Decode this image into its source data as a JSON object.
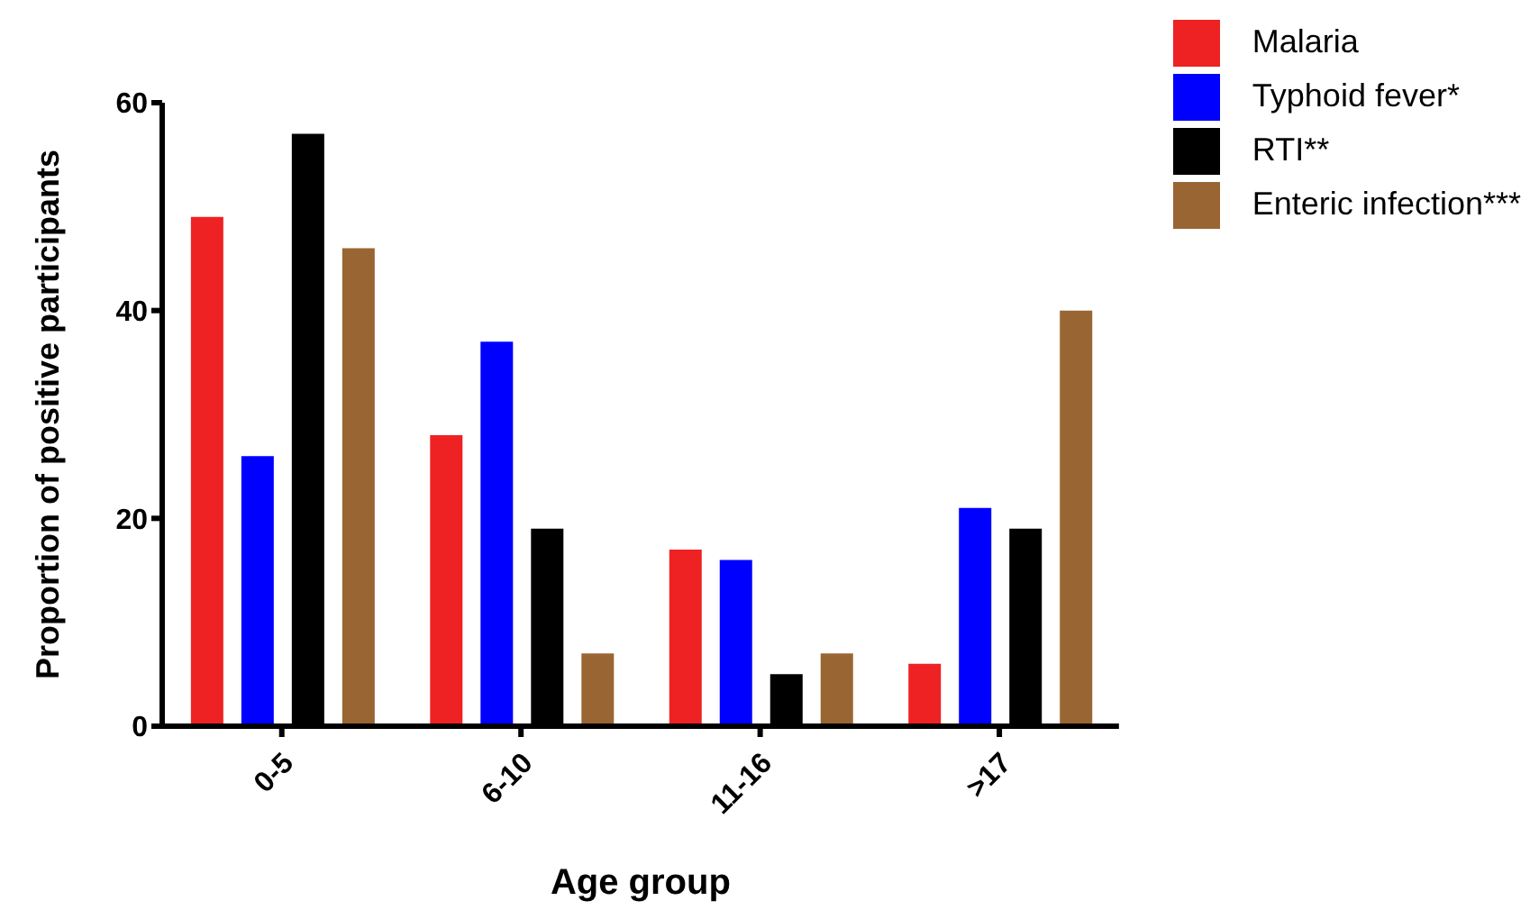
{
  "chart_data": {
    "type": "bar",
    "xlabel": "Age group",
    "ylabel": "Proportion of positive participants",
    "categories": [
      "0-5",
      "6-10",
      "11-16",
      ">17"
    ],
    "series": [
      {
        "name": "Malaria",
        "color": "#ee2222",
        "values": [
          49,
          28,
          17,
          6
        ]
      },
      {
        "name": "Typhoid fever*",
        "color": "#0000ff",
        "values": [
          26,
          37,
          16,
          21
        ]
      },
      {
        "name": "RTI**",
        "color": "#000000",
        "values": [
          57,
          19,
          5,
          19
        ]
      },
      {
        "name": "Enteric infection***",
        "color": "#996633",
        "values": [
          46,
          7,
          7,
          40
        ]
      }
    ],
    "ylim": [
      0,
      60
    ],
    "yticks": [
      0,
      20,
      40,
      60
    ],
    "grid": false,
    "legend": "top right"
  }
}
